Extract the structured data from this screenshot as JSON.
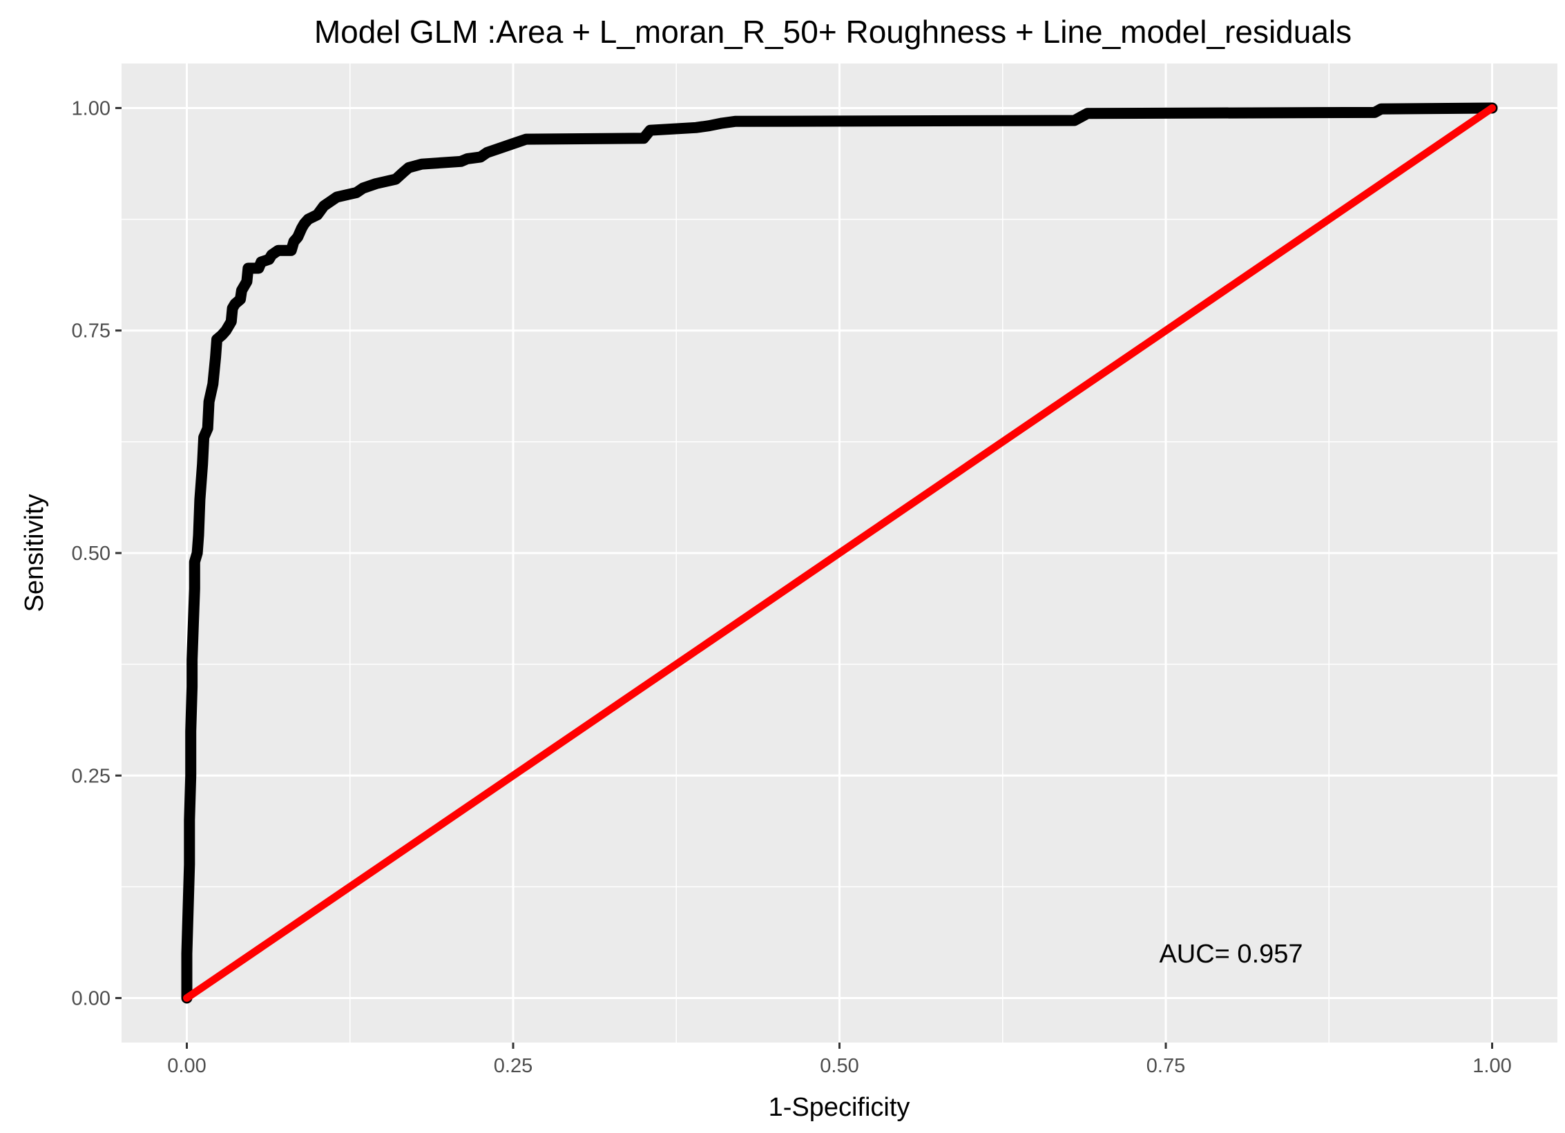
{
  "chart_data": {
    "type": "line",
    "title": "Model GLM :Area + L_moran_R_50+ Roughness + Line_model_residuals",
    "xlabel": "1-Specificity",
    "ylabel": "Sensitivity",
    "xlim": [
      -0.05,
      1.05
    ],
    "ylim": [
      -0.05,
      1.05
    ],
    "x_ticks": [
      "0.00",
      "0.25",
      "0.50",
      "0.75",
      "1.00"
    ],
    "y_ticks": [
      "0.00",
      "0.25",
      "0.50",
      "0.75",
      "1.00"
    ],
    "grid": true,
    "legend": "none",
    "annotation": {
      "text": "AUC= 0.957",
      "x": 0.8,
      "y": 0.05
    },
    "colors": {
      "panel": "#ebebeb",
      "grid": "#ffffff",
      "roc": "#000000",
      "diagonal": "#ff0000"
    },
    "series": [
      {
        "color": "#000000",
        "points": [
          [
            0.0,
            0.0
          ],
          [
            0.0,
            0.05
          ],
          [
            0.002,
            0.15
          ],
          [
            0.002,
            0.2
          ],
          [
            0.003,
            0.25
          ],
          [
            0.003,
            0.3
          ],
          [
            0.004,
            0.35
          ],
          [
            0.004,
            0.38
          ],
          [
            0.005,
            0.42
          ],
          [
            0.006,
            0.46
          ],
          [
            0.006,
            0.49
          ],
          [
            0.008,
            0.5
          ],
          [
            0.009,
            0.52
          ],
          [
            0.01,
            0.56
          ],
          [
            0.011,
            0.58
          ],
          [
            0.012,
            0.6
          ],
          [
            0.013,
            0.63
          ],
          [
            0.016,
            0.64
          ],
          [
            0.017,
            0.67
          ],
          [
            0.02,
            0.69
          ],
          [
            0.022,
            0.72
          ],
          [
            0.023,
            0.74
          ],
          [
            0.027,
            0.745
          ],
          [
            0.03,
            0.75
          ],
          [
            0.034,
            0.76
          ],
          [
            0.035,
            0.775
          ],
          [
            0.037,
            0.78
          ],
          [
            0.041,
            0.785
          ],
          [
            0.042,
            0.795
          ],
          [
            0.046,
            0.805
          ],
          [
            0.047,
            0.82
          ],
          [
            0.055,
            0.82
          ],
          [
            0.057,
            0.827
          ],
          [
            0.063,
            0.83
          ],
          [
            0.065,
            0.835
          ],
          [
            0.07,
            0.84
          ],
          [
            0.08,
            0.84
          ],
          [
            0.082,
            0.85
          ],
          [
            0.085,
            0.855
          ],
          [
            0.088,
            0.865
          ],
          [
            0.09,
            0.87
          ],
          [
            0.093,
            0.875
          ],
          [
            0.1,
            0.88
          ],
          [
            0.105,
            0.89
          ],
          [
            0.11,
            0.895
          ],
          [
            0.115,
            0.9
          ],
          [
            0.13,
            0.905
          ],
          [
            0.135,
            0.91
          ],
          [
            0.145,
            0.915
          ],
          [
            0.16,
            0.92
          ],
          [
            0.166,
            0.928
          ],
          [
            0.17,
            0.933
          ],
          [
            0.18,
            0.937
          ],
          [
            0.21,
            0.94
          ],
          [
            0.215,
            0.943
          ],
          [
            0.225,
            0.945
          ],
          [
            0.23,
            0.95
          ],
          [
            0.24,
            0.955
          ],
          [
            0.25,
            0.96
          ],
          [
            0.26,
            0.965
          ],
          [
            0.35,
            0.966
          ],
          [
            0.355,
            0.975
          ],
          [
            0.39,
            0.978
          ],
          [
            0.4,
            0.98
          ],
          [
            0.41,
            0.983
          ],
          [
            0.42,
            0.985
          ],
          [
            0.68,
            0.986
          ],
          [
            0.685,
            0.99
          ],
          [
            0.69,
            0.994
          ],
          [
            0.91,
            0.995
          ],
          [
            0.915,
            0.999
          ],
          [
            1.0,
            1.0
          ]
        ]
      },
      {
        "color": "#ff0000",
        "points": [
          [
            0.0,
            0.0
          ],
          [
            1.0,
            1.0
          ]
        ]
      }
    ]
  }
}
